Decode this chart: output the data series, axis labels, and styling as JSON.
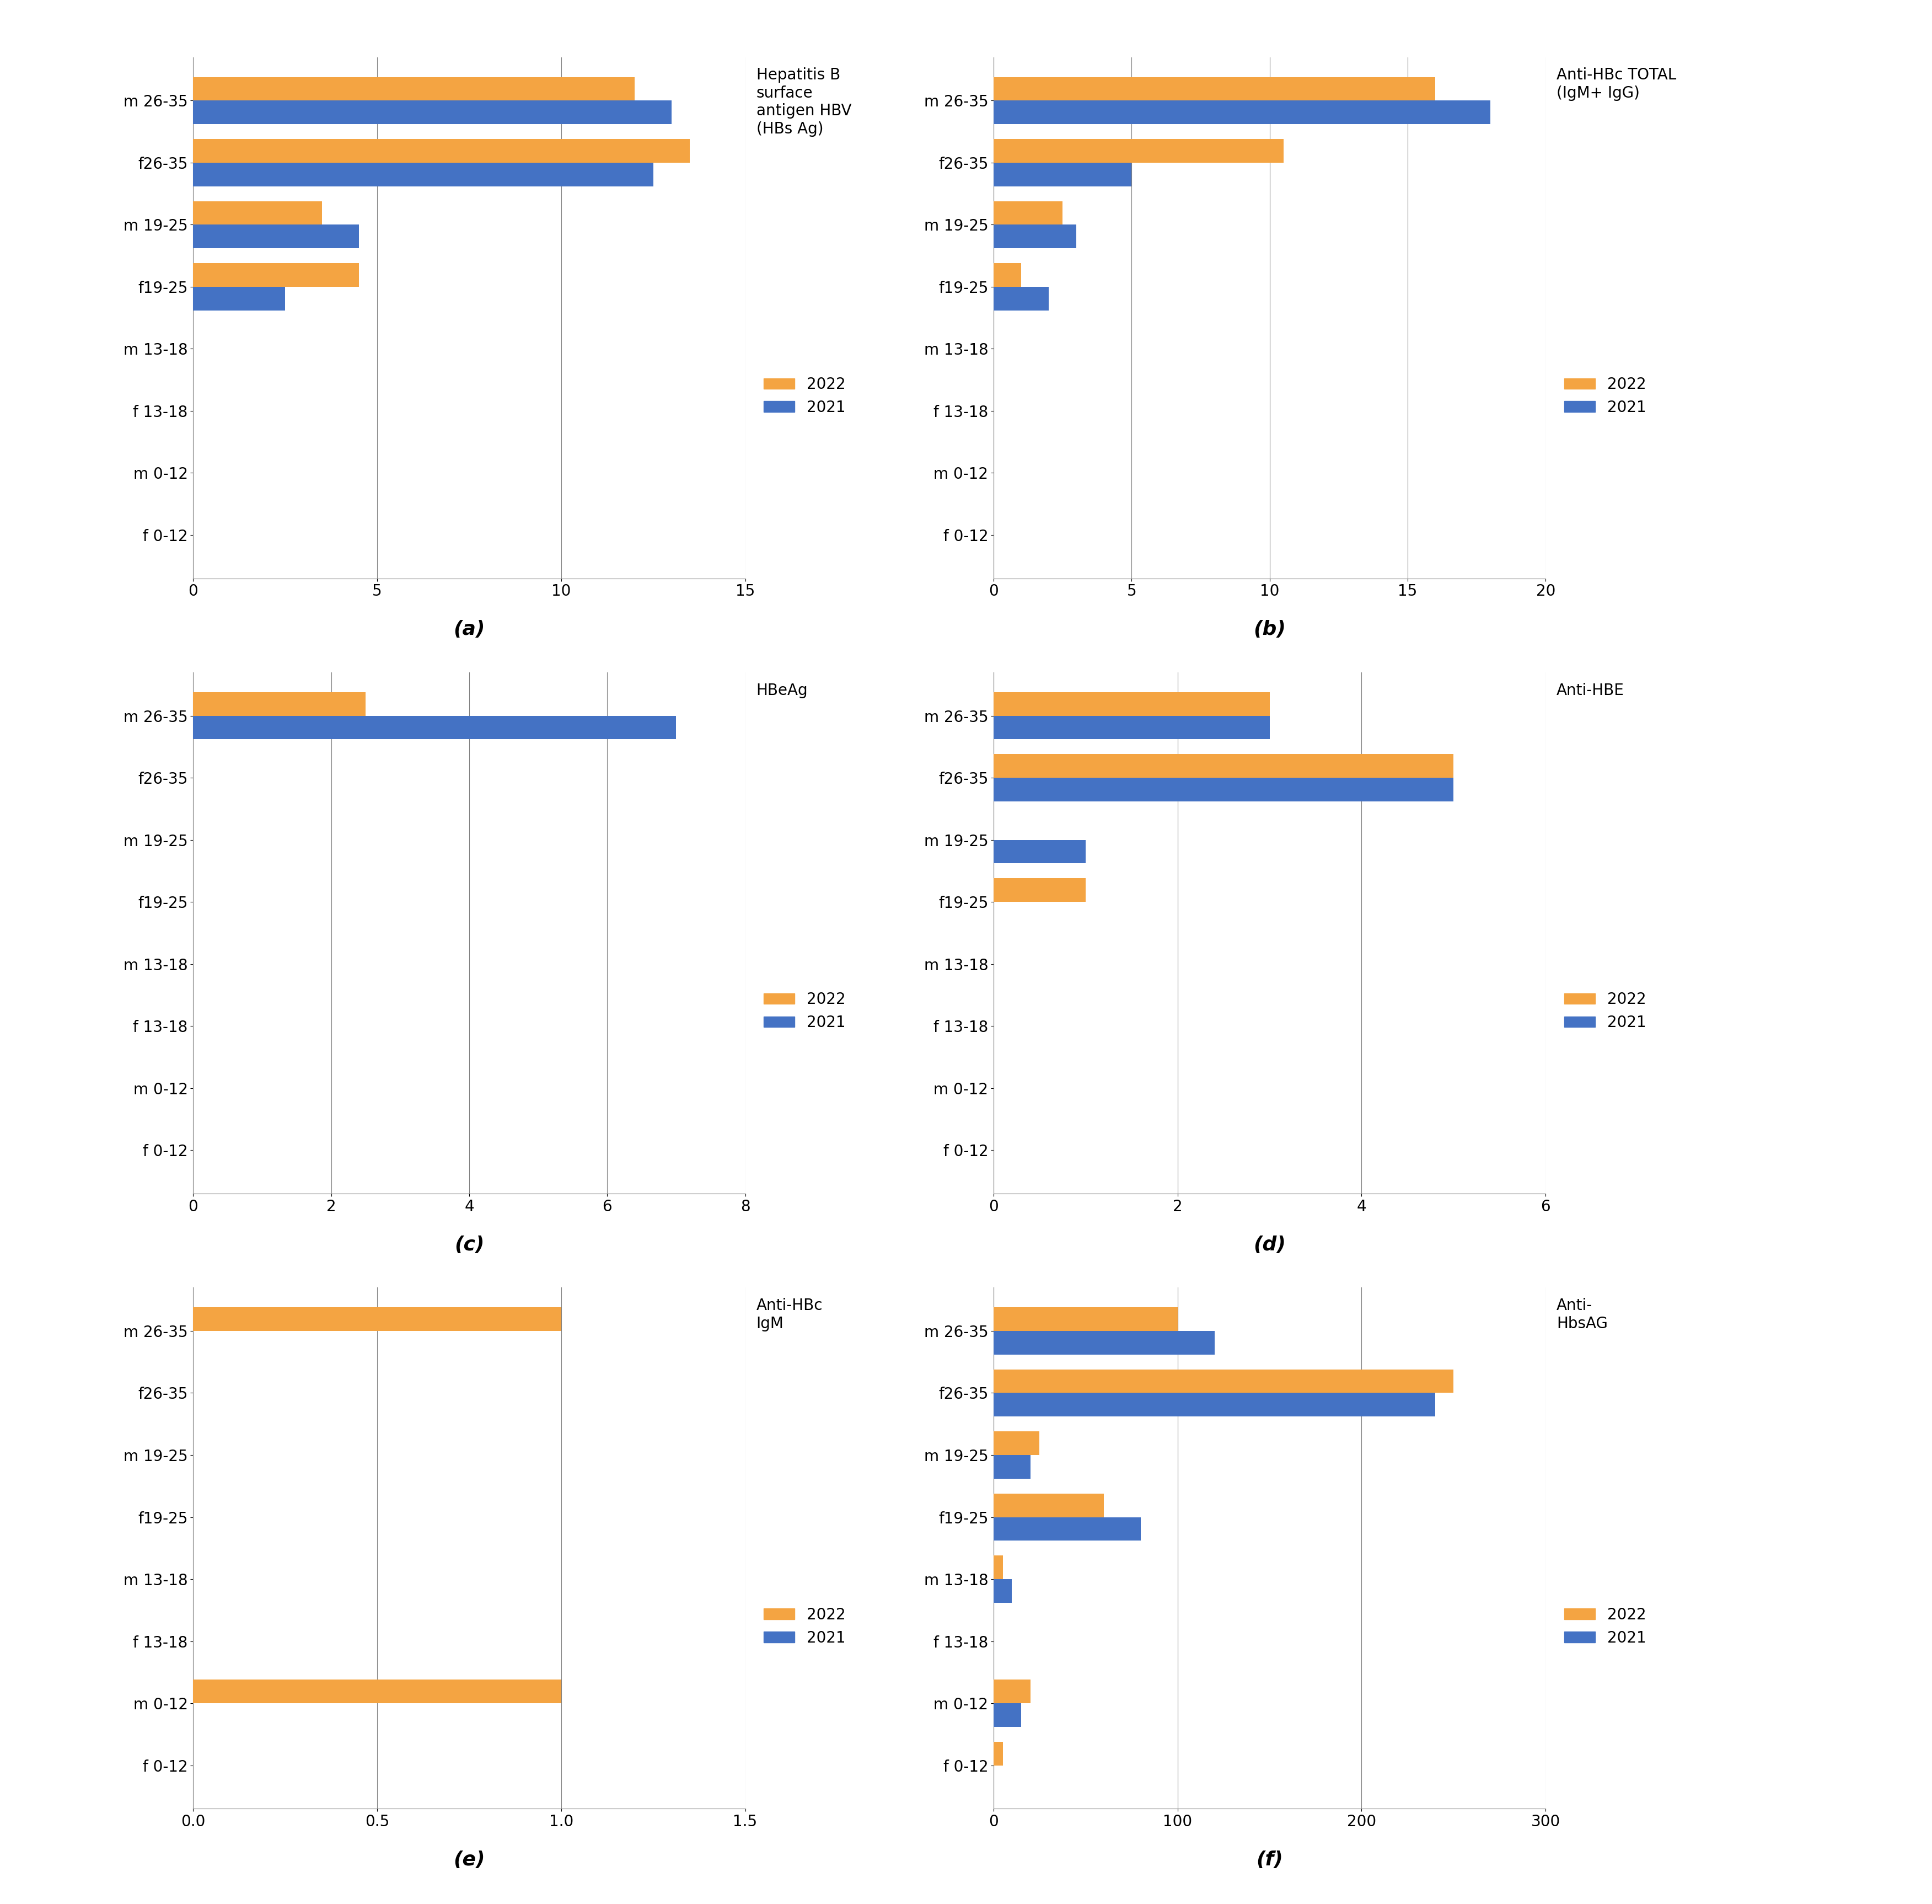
{
  "categories": [
    "m 26-35",
    "f26-35",
    "m 19-25",
    "f19-25",
    "m 13-18",
    "f 13-18",
    "m 0-12",
    "f 0-12"
  ],
  "charts": [
    {
      "title": "Hepatitis B\nsurface\nantigen HBV\n(HBs Ag)",
      "label": "(a)",
      "xlim": [
        0,
        15
      ],
      "xticks": [
        0,
        5,
        10,
        15
      ],
      "values_2022": [
        12.0,
        13.5,
        3.5,
        4.5,
        0,
        0,
        0,
        0
      ],
      "values_2021": [
        13.0,
        12.5,
        4.5,
        2.5,
        0,
        0,
        0,
        0
      ]
    },
    {
      "title": "Anti-HBc TOTAL\n(IgM+ IgG)",
      "label": "(b)",
      "xlim": [
        0,
        20
      ],
      "xticks": [
        0,
        5,
        10,
        15,
        20
      ],
      "values_2022": [
        16.0,
        10.5,
        2.5,
        1.0,
        0,
        0,
        0,
        0
      ],
      "values_2021": [
        18.0,
        5.0,
        3.0,
        2.0,
        0,
        0,
        0,
        0
      ]
    },
    {
      "title": "HBeAg",
      "label": "(c)",
      "xlim": [
        0,
        8
      ],
      "xticks": [
        0,
        2,
        4,
        6,
        8
      ],
      "values_2022": [
        2.5,
        0,
        0,
        0,
        0,
        0,
        0,
        0
      ],
      "values_2021": [
        7.0,
        0,
        0,
        0,
        0,
        0,
        0,
        0
      ]
    },
    {
      "title": "Anti-HBE",
      "label": "(d)",
      "xlim": [
        0,
        6
      ],
      "xticks": [
        0,
        2,
        4,
        6
      ],
      "values_2022": [
        3.0,
        5.0,
        0,
        1.0,
        0,
        0,
        0,
        0
      ],
      "values_2021": [
        3.0,
        5.0,
        1.0,
        0,
        0,
        0,
        0,
        0
      ]
    },
    {
      "title": "Anti-HBc\nIgM",
      "label": "(e)",
      "xlim": [
        0,
        1.5
      ],
      "xticks": [
        0,
        0.5,
        1.0,
        1.5
      ],
      "values_2022": [
        1.0,
        0,
        0,
        0,
        0,
        0,
        1.0,
        0
      ],
      "values_2021": [
        0,
        0,
        0,
        0,
        0,
        0,
        0,
        0
      ]
    },
    {
      "title": "Anti-\nHbsAG",
      "label": "(f)",
      "xlim": [
        0,
        300
      ],
      "xticks": [
        0,
        100,
        200,
        300
      ],
      "values_2022": [
        100,
        250,
        25,
        60,
        5,
        0,
        20,
        5
      ],
      "values_2021": [
        120,
        240,
        20,
        80,
        10,
        0,
        15,
        0
      ]
    }
  ],
  "color_2022": "#F4A442",
  "color_2021": "#4472C4",
  "bar_height": 0.38,
  "tick_fontsize": 20,
  "legend_fontsize": 20,
  "title_fontsize": 20,
  "sublabel_fontsize": 26
}
